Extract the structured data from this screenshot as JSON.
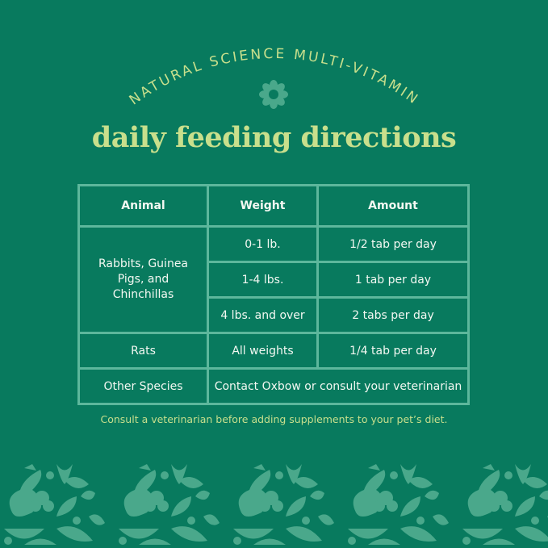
{
  "arc_heading": "NATURAL SCIENCE MULTI-VITAMIN",
  "title": "daily feeding directions",
  "table": {
    "headers": [
      "Animal",
      "Weight",
      "Amount"
    ],
    "rabbits": {
      "animal": "Rabbits, Guinea Pigs, and Chinchillas",
      "rows": [
        {
          "weight": "0-1 lb.",
          "amount": "1/2 tab per day"
        },
        {
          "weight": "1-4 lbs.",
          "amount": "1 tab per day"
        },
        {
          "weight": "4 lbs. and over",
          "amount": "2 tabs per day"
        }
      ]
    },
    "rats": {
      "animal": "Rats",
      "weight": "All weights",
      "amount": "1/4 tab per day"
    },
    "other": {
      "animal": "Other Species",
      "note": "Contact Oxbow or consult your veterinarian"
    }
  },
  "footnote": "Consult a veterinarian before adding supplements to your pet’s diet.",
  "colors": {
    "background": "#087a5e",
    "accent": "#c8df8c",
    "table_lines": "#5db79c",
    "pattern": "#4aa88b"
  },
  "icons": [
    "flower-icon",
    "animal-plant-pattern"
  ]
}
